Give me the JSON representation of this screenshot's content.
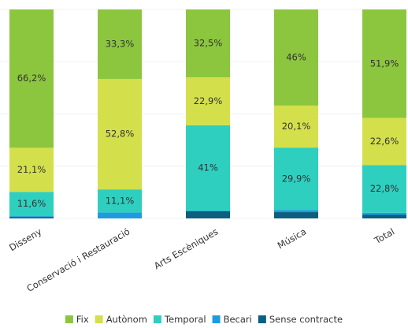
{
  "chart_data": {
    "type": "stacked_bar",
    "categories": [
      "Disseny",
      "Conservació i Restauració",
      "Arts Escèniques",
      "Música",
      "Total"
    ],
    "series": [
      {
        "name": "Fix",
        "color": "#8cc63f",
        "values": [
          66.2,
          33.3,
          32.5,
          46,
          51.9
        ],
        "value_labels": [
          "66,2%",
          "33,3%",
          "32,5%",
          "46%",
          "51,9%"
        ]
      },
      {
        "name": "Autònom",
        "color": "#d4e04b",
        "values": [
          21.1,
          52.8,
          22.9,
          20.1,
          22.6
        ],
        "value_labels": [
          "21,1%",
          "52,8%",
          "22,9%",
          "20,1%",
          "22,6%"
        ]
      },
      {
        "name": "Temporal",
        "color": "#2ecfbf",
        "values": [
          11.6,
          11.1,
          41,
          29.9,
          22.8
        ],
        "value_labels": [
          "11,6%",
          "11,1%",
          "41%",
          "29,9%",
          "22,8%"
        ]
      },
      {
        "name": "Becari",
        "color": "#1e9be0",
        "values": [
          0.4,
          2.8,
          0.2,
          1.0,
          1.0
        ]
      },
      {
        "name": "Sense contracte",
        "color": "#0b5f7f",
        "values": [
          0.7,
          0,
          3.4,
          3.0,
          1.7
        ]
      }
    ],
    "ylim": [
      0,
      100
    ],
    "yticks": [
      0,
      25,
      50,
      75,
      100
    ],
    "grid": true,
    "legend": "bottom"
  }
}
